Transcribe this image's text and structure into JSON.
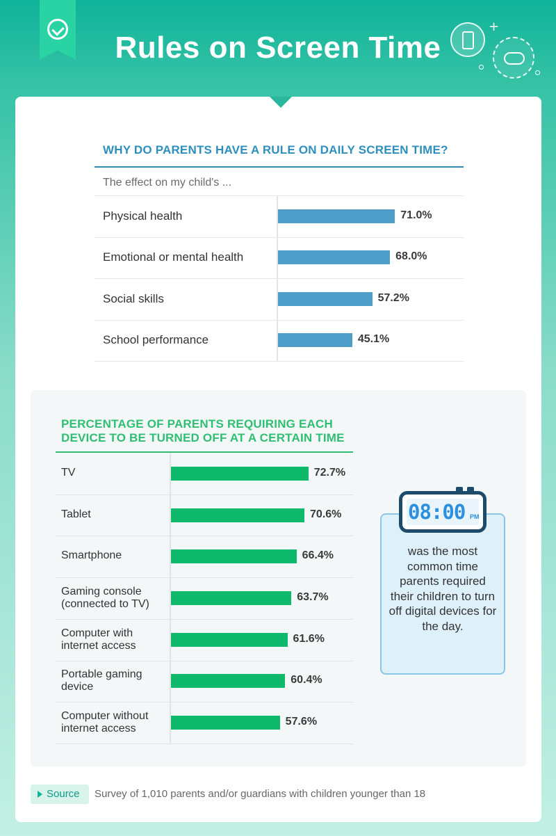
{
  "header": {
    "title": "Rules on Screen Time"
  },
  "chart_data": [
    {
      "type": "bar",
      "orientation": "horizontal",
      "title": "WHY DO PARENTS HAVE A RULE ON DAILY SCREEN TIME?",
      "subtitle": "The effect on my child's ...",
      "categories": [
        "Physical health",
        "Emotional or mental health",
        "Social skills",
        "School performance"
      ],
      "values": [
        71.0,
        68.0,
        57.2,
        45.1
      ],
      "value_labels": [
        "71.0%",
        "68.0%",
        "57.2%",
        "45.1%"
      ],
      "xlim": [
        0,
        100
      ],
      "color": "#4e9ec9",
      "grid": false
    },
    {
      "type": "bar",
      "orientation": "horizontal",
      "title": "PERCENTAGE OF PARENTS REQUIRING EACH DEVICE TO BE TURNED OFF AT A CERTAIN TIME",
      "categories": [
        "TV",
        "Tablet",
        "Smartphone",
        "Gaming console (connected to TV)",
        "Computer with internet access",
        "Portable gaming device",
        "Computer without internet access"
      ],
      "values": [
        72.7,
        70.6,
        66.4,
        63.7,
        61.6,
        60.4,
        57.6
      ],
      "value_labels": [
        "72.7%",
        "70.6%",
        "66.4%",
        "63.7%",
        "61.6%",
        "60.4%",
        "57.6%"
      ],
      "xlim": [
        0,
        100
      ],
      "color": "#0eb96c",
      "grid": false
    }
  ],
  "callout": {
    "time": "08:00",
    "period": "PM",
    "text": "was the most common time parents required their children to turn off digital devices for the day."
  },
  "source": {
    "label": "Source",
    "text": "Survey of 1,010 parents and/or guardians with children younger than 18"
  },
  "colors": {
    "chart1_accent": "#2c8fbd",
    "chart2_accent": "#2fbf73"
  }
}
